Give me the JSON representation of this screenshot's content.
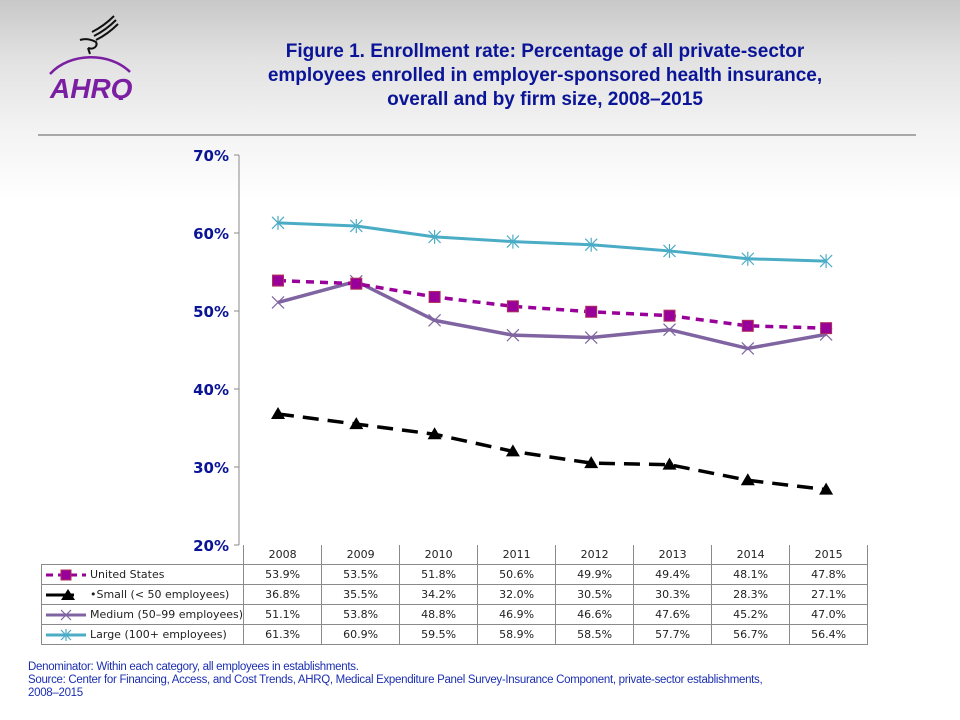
{
  "logo": {
    "agency_icon": "hhs-eagle-icon",
    "text": "AHRQ"
  },
  "title_lines": [
    "Figure 1. Enrollment rate: Percentage of all private-sector",
    "employees enrolled in employer-sponsored health insurance,",
    "overall and by firm size, 2008–2015"
  ],
  "colors": {
    "united_states": "#990099",
    "small": "#000000",
    "medium": "#8064a2",
    "large": "#4bacc6",
    "title": "#0a1496",
    "notes": "#1c2fb0"
  },
  "chart_data": {
    "type": "line",
    "title": "Figure 1. Enrollment rate: Percentage of all private-sector employees enrolled in employer-sponsored health insurance, overall and by firm size, 2008–2015",
    "xlabel": "",
    "ylabel": "",
    "x": [
      "2008",
      "2009",
      "2010",
      "2011",
      "2012",
      "2013",
      "2014",
      "2015"
    ],
    "ylim": [
      20,
      70
    ],
    "yticks": [
      20,
      30,
      40,
      50,
      60,
      70
    ],
    "ytick_labels": [
      "20%",
      "30%",
      "40%",
      "50%",
      "60%",
      "70%"
    ],
    "grid": false,
    "legend": "data-table-below",
    "series": [
      {
        "key": "united_states",
        "name": "United States",
        "marker": "square",
        "line": "dashed",
        "values": [
          53.9,
          53.5,
          51.8,
          50.6,
          49.9,
          49.4,
          48.1,
          47.8
        ],
        "labels": [
          "53.9%",
          "53.5%",
          "51.8%",
          "50.6%",
          "49.9%",
          "49.4%",
          "48.1%",
          "47.8%"
        ]
      },
      {
        "key": "small",
        "name": "•Small (< 50 employees)",
        "marker": "triangle",
        "line": "long-dash",
        "values": [
          36.8,
          35.5,
          34.2,
          32.0,
          30.5,
          30.3,
          28.3,
          27.1
        ],
        "labels": [
          "36.8%",
          "35.5%",
          "34.2%",
          "32.0%",
          "30.5%",
          "30.3%",
          "28.3%",
          "27.1%"
        ]
      },
      {
        "key": "medium",
        "name": "Medium (50–99 employees)",
        "marker": "x",
        "line": "solid",
        "values": [
          51.1,
          53.8,
          48.8,
          46.9,
          46.6,
          47.6,
          45.2,
          47.0
        ],
        "labels": [
          "51.1%",
          "53.8%",
          "48.8%",
          "46.9%",
          "46.6%",
          "47.6%",
          "45.2%",
          "47.0%"
        ]
      },
      {
        "key": "large",
        "name": "Large (100+ employees)",
        "marker": "star",
        "line": "solid",
        "values": [
          61.3,
          60.9,
          59.5,
          58.9,
          58.5,
          57.7,
          56.7,
          56.4
        ],
        "labels": [
          "61.3%",
          "60.9%",
          "59.5%",
          "58.9%",
          "58.5%",
          "57.7%",
          "56.7%",
          "56.4%"
        ]
      }
    ]
  },
  "notes": [
    "Denominator: Within each category, all employees in establishments.",
    "Source: Center for Financing, Access, and Cost Trends, AHRQ, Medical Expenditure Panel Survey-Insurance Component, private-sector establishments,",
    "2008–2015"
  ]
}
